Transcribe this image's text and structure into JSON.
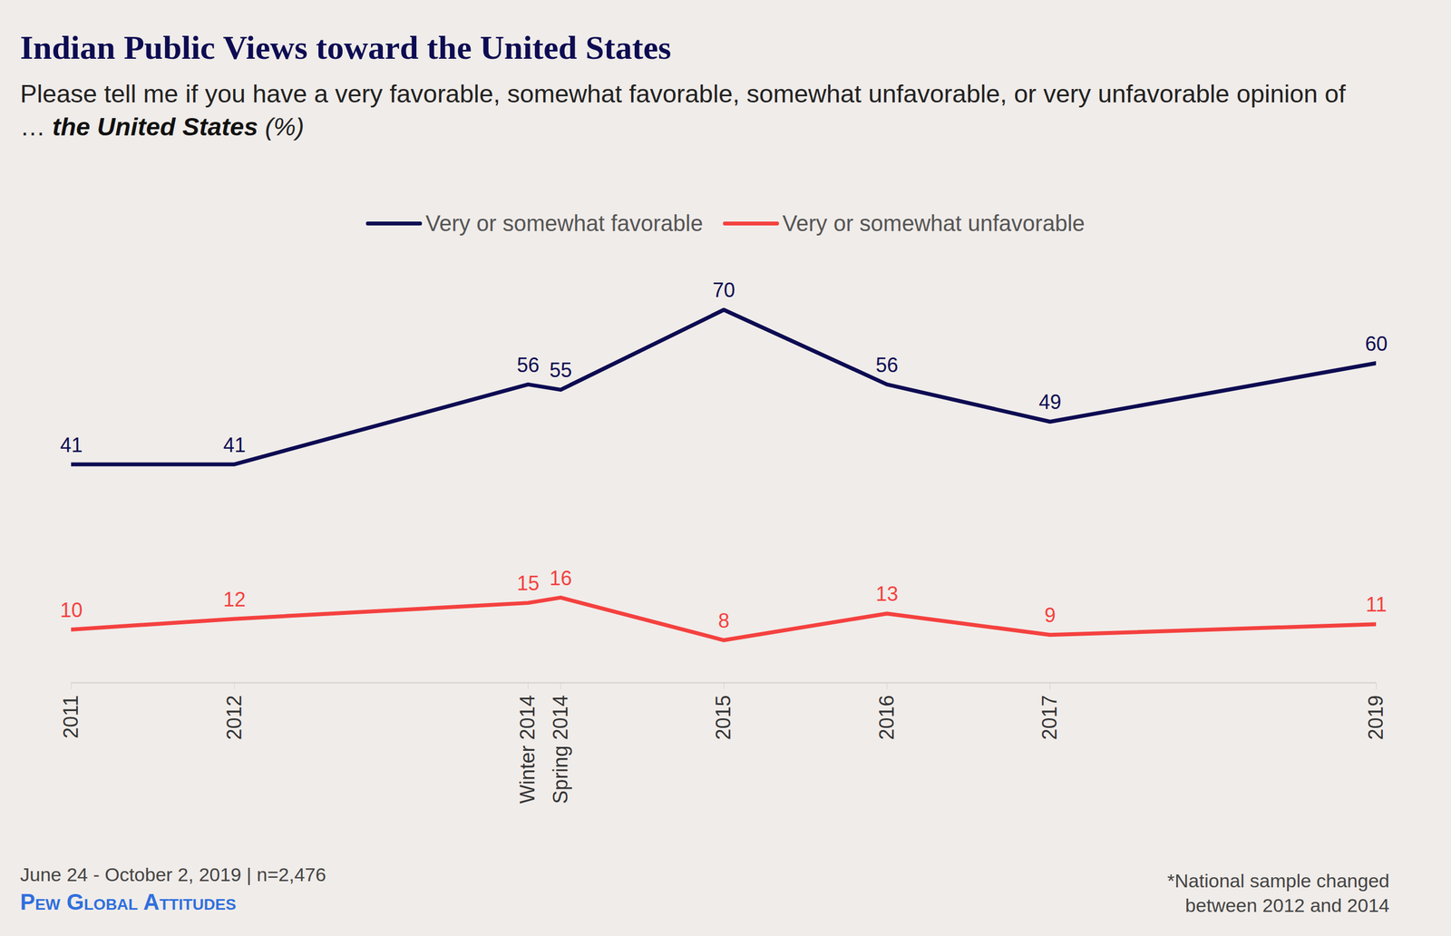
{
  "chart_data": {
    "type": "line",
    "title": "Indian Public Views toward the United States",
    "subtitle": "Please tell me if you have a very favorable, somewhat favorable, somewhat unfavorable, or very unfavorable opinion of …",
    "subtitle_emphasis": "the United States",
    "subtitle_unit": "(%)",
    "x": [
      2011,
      2012,
      2013.8,
      2014,
      2015,
      2016,
      2017,
      2019
    ],
    "series": [
      {
        "name": "Very or somewhat favorable",
        "color": "#0d0c52",
        "values": [
          41,
          41,
          56,
          55,
          70,
          56,
          49,
          60
        ]
      },
      {
        "name": "Very or somewhat unfavorable",
        "color": "#f4413f",
        "values": [
          10,
          12,
          15,
          16,
          8,
          13,
          9,
          11
        ]
      }
    ],
    "xlim": [
      2011,
      2019
    ],
    "xticks": [
      2011,
      2012,
      {
        "value": 2013.8,
        "label": "Winter 2014"
      },
      {
        "value": 2014,
        "label": "Spring 2014"
      },
      2015,
      2016,
      2017,
      2019
    ],
    "ylim": [
      0,
      80
    ],
    "tick_labels": "x",
    "data_labels": true,
    "legend": "top",
    "source": "June 24 - October 2, 2019 | n=2,476",
    "publisher": "Pew Global Attitudes",
    "note": "*National sample changed between 2012 and 2014"
  }
}
